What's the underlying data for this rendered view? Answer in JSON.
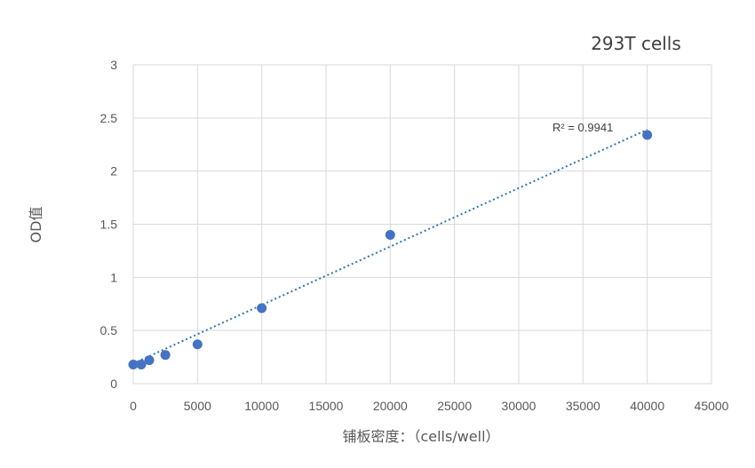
{
  "chart_data": {
    "type": "scatter",
    "title": "293T cells",
    "xlabel": "铺板密度：（cells/well）",
    "ylabel": "OD值",
    "xlim": [
      0,
      45000
    ],
    "ylim": [
      0,
      3
    ],
    "x_ticks": [
      0,
      5000,
      10000,
      15000,
      20000,
      25000,
      30000,
      35000,
      40000,
      45000
    ],
    "y_ticks": [
      0,
      0.5,
      1,
      1.5,
      2,
      2.5,
      3
    ],
    "x_tick_labels": [
      "0",
      "5000",
      "10000",
      "15000",
      "20000",
      "25000",
      "30000",
      "35000",
      "40000",
      "45000"
    ],
    "y_tick_labels": [
      "0",
      "0.5",
      "1",
      "1.5",
      "2",
      "2.5",
      "3"
    ],
    "grid": true,
    "series": [
      {
        "x": [
          0,
          625,
          1250,
          2500,
          5000,
          10000,
          20000,
          40000
        ],
        "y": [
          0.18,
          0.18,
          0.22,
          0.27,
          0.37,
          0.71,
          1.4,
          2.34
        ]
      }
    ],
    "trendline": {
      "type": "linear",
      "style": "dotted",
      "x": [
        0,
        40000
      ],
      "y": [
        0.19,
        2.39
      ],
      "r_squared_label": "R² = 0.9941"
    },
    "colors": {
      "points": "#4472C4",
      "trendline": "#2E75B6",
      "grid": "#D9D9D9"
    }
  }
}
